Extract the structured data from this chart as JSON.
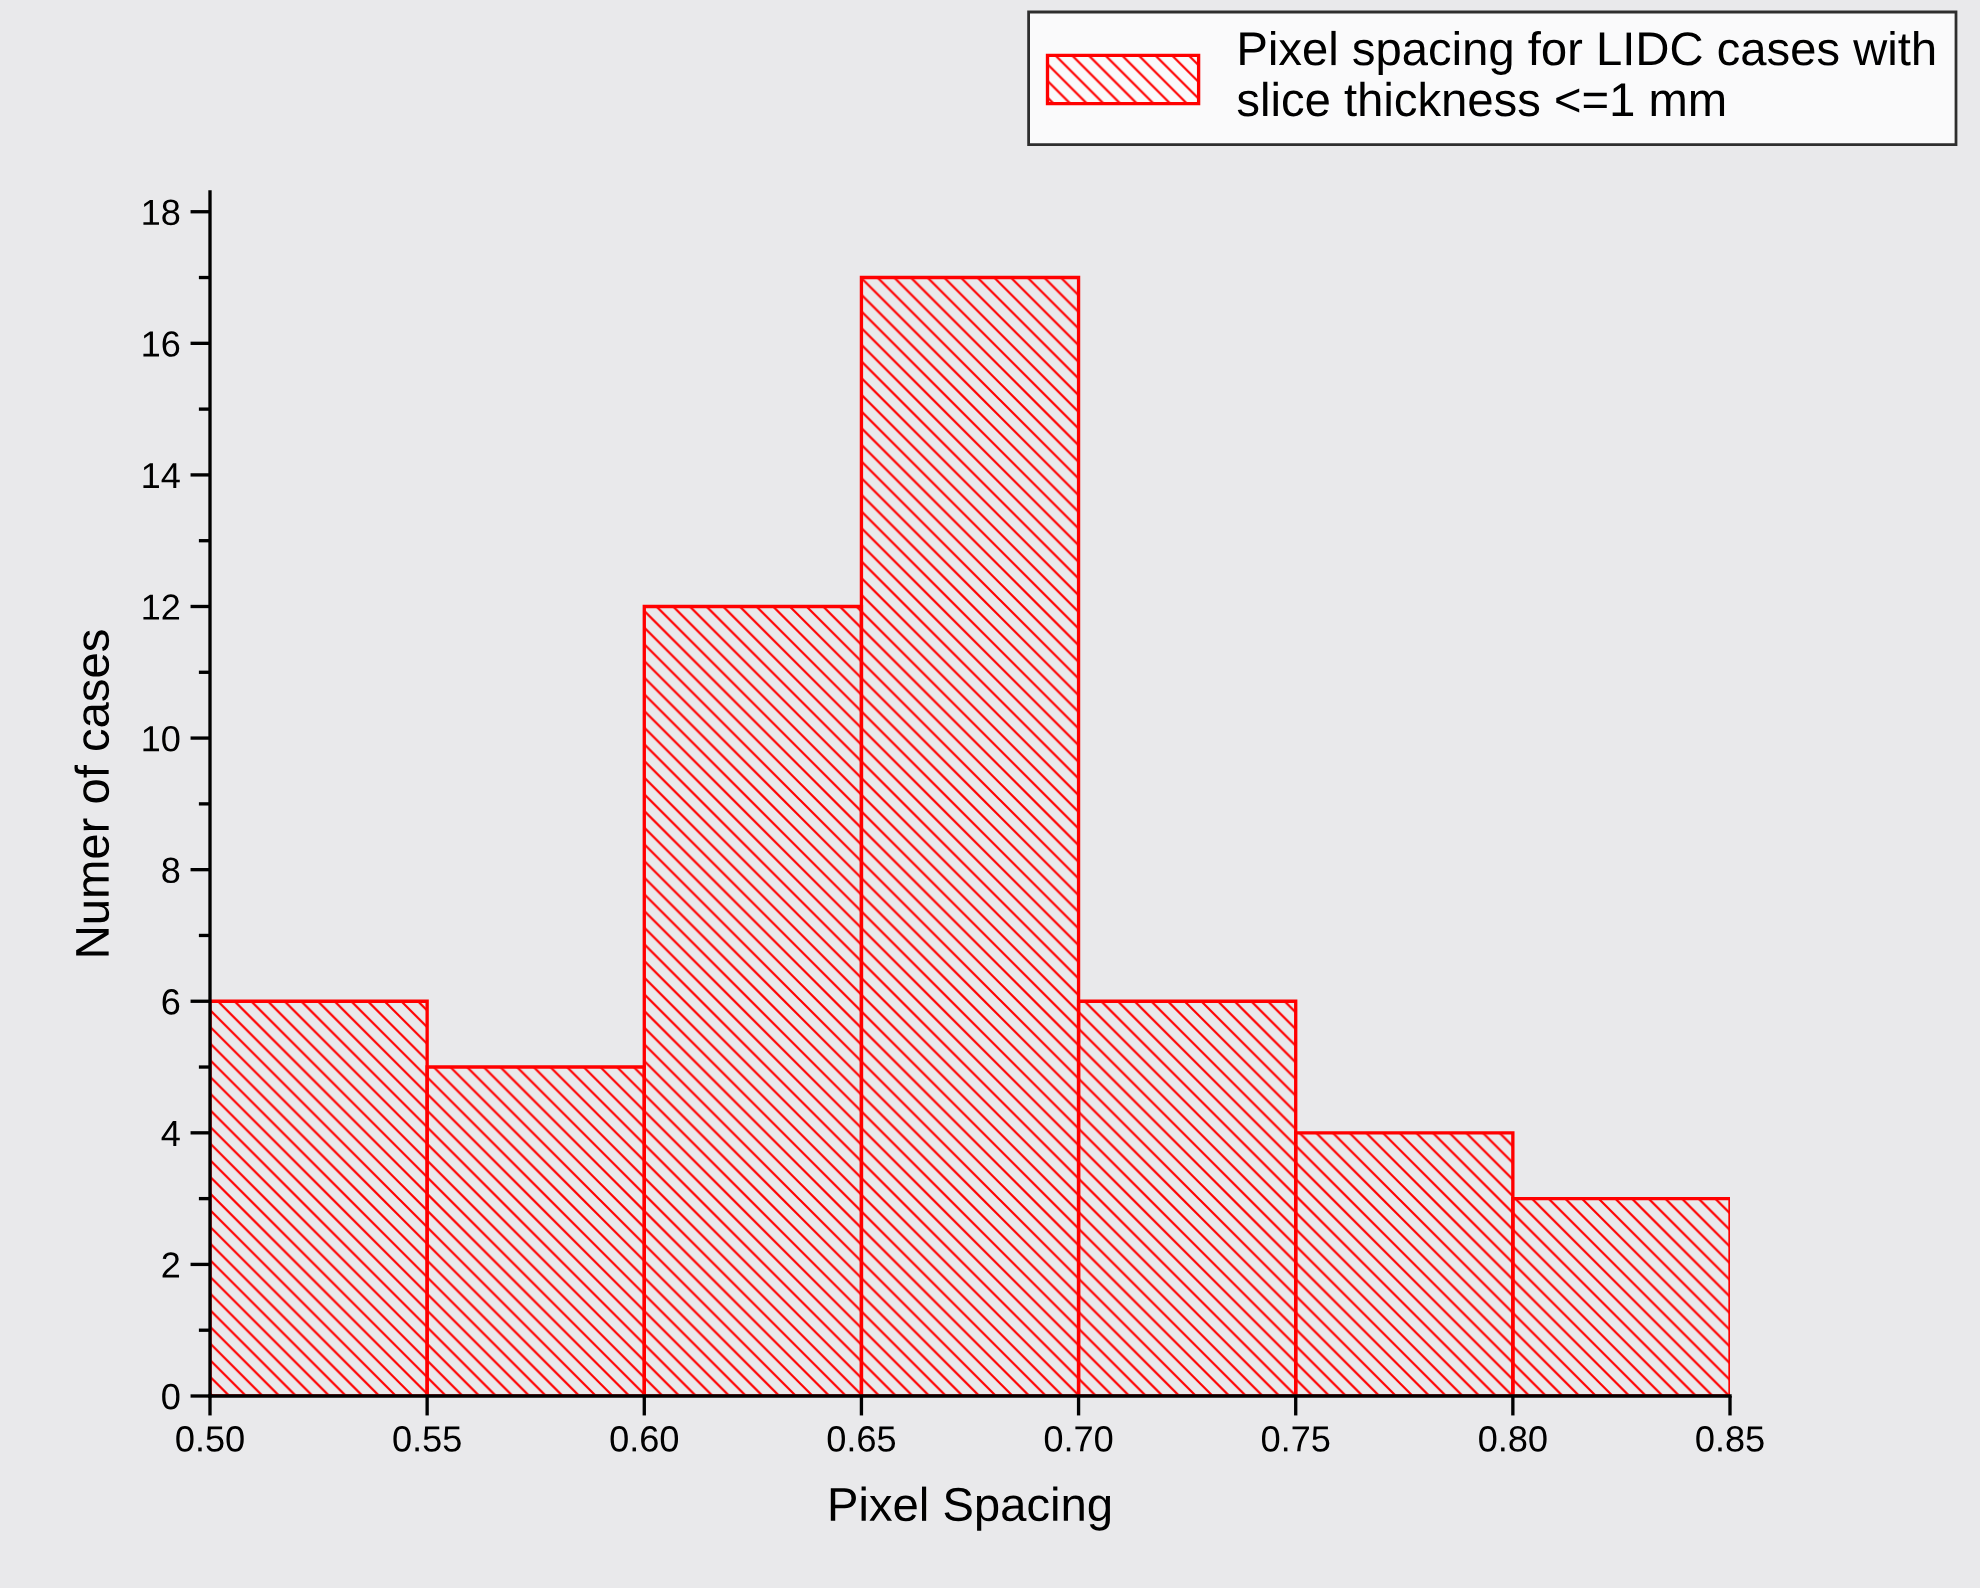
{
  "chart_data": {
    "type": "histogram",
    "xlabel": "Pixel Spacing",
    "ylabel": "Numer of cases",
    "bins": [
      0.5,
      0.55,
      0.6,
      0.65,
      0.7,
      0.75,
      0.8,
      0.85
    ],
    "series": [
      {
        "name": "Pixel spacing for LIDC cases with\nslice thickness <=1 mm",
        "color": "#ff0000",
        "values": [
          6,
          5,
          12,
          17,
          6,
          4,
          3
        ]
      }
    ],
    "xlim": [
      0.5,
      0.85
    ],
    "xticks": [
      {
        "value": 0.5,
        "label": "0.50"
      },
      {
        "value": 0.55,
        "label": "0.55"
      },
      {
        "value": 0.6,
        "label": "0.60"
      },
      {
        "value": 0.65,
        "label": "0.65"
      },
      {
        "value": 0.7,
        "label": "0.70"
      },
      {
        "value": 0.75,
        "label": "0.75"
      },
      {
        "value": 0.8,
        "label": "0.80"
      },
      {
        "value": 0.85,
        "label": "0.85"
      }
    ],
    "ylim": [
      0,
      18.3
    ],
    "yticks": [
      0,
      {
        "value": 1,
        "label": null
      },
      2,
      {
        "value": 3,
        "label": null
      },
      4,
      {
        "value": 5,
        "label": null
      },
      6,
      {
        "value": 7,
        "label": null
      },
      8,
      {
        "value": 9,
        "label": null
      },
      10,
      {
        "value": 11,
        "label": null
      },
      12,
      {
        "value": 13,
        "label": null
      },
      14,
      {
        "value": 15,
        "label": null
      },
      16,
      {
        "value": 17,
        "label": null
      },
      18
    ],
    "grid": false,
    "legend": "top right"
  }
}
